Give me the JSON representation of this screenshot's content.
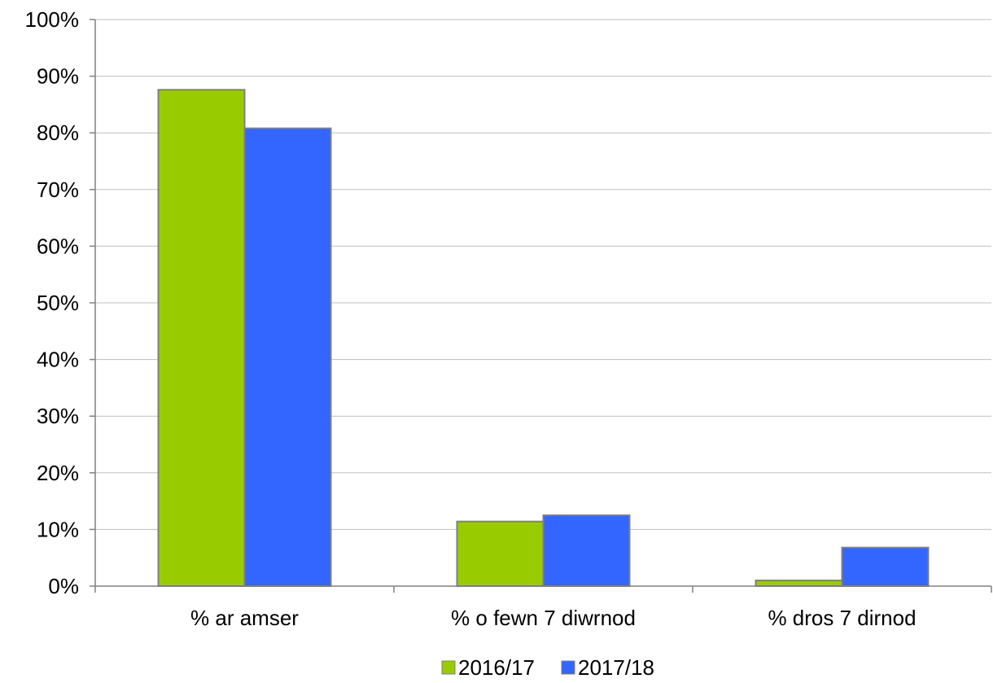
{
  "chart_data": {
    "type": "bar",
    "categories": [
      "% ar amser",
      "% o fewn 7 diwrnod",
      "% dros 7 dirnod"
    ],
    "series": [
      {
        "name": "2016/17",
        "values": [
          87.6,
          11.4,
          1.0
        ],
        "color": "#99cc00"
      },
      {
        "name": "2017/18",
        "values": [
          80.8,
          12.5,
          6.8
        ],
        "color": "#3366ff"
      }
    ],
    "ylim": [
      0,
      100
    ],
    "yticks": [
      0,
      10,
      20,
      30,
      40,
      50,
      60,
      70,
      80,
      90,
      100
    ],
    "ytick_labels": [
      "0%",
      "10%",
      "20%",
      "30%",
      "40%",
      "50%",
      "60%",
      "70%",
      "80%",
      "90%",
      "100%"
    ],
    "grid": true,
    "legend_position": "bottom",
    "title": "",
    "xlabel": "",
    "ylabel": ""
  }
}
